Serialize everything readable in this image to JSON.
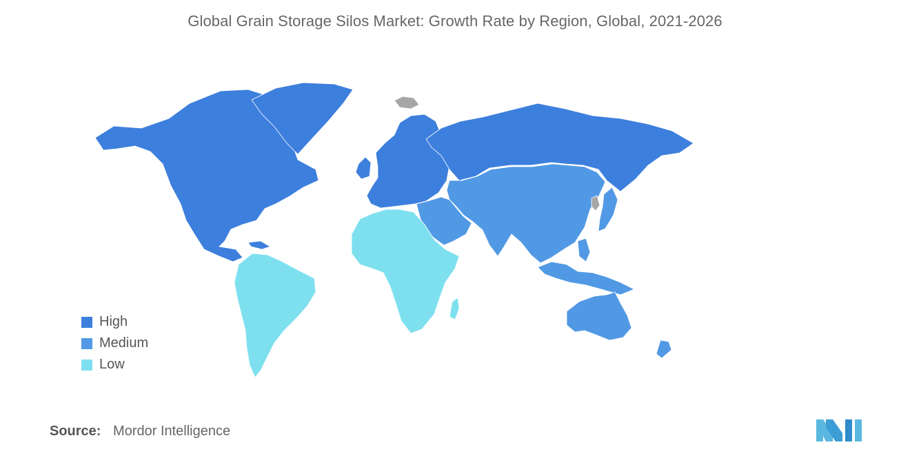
{
  "title": "Global Grain Storage Silos Market: Growth Rate by Region, Global, 2021-2026",
  "legend": {
    "items": [
      {
        "label": "High",
        "color": "#3d7fdd"
      },
      {
        "label": "Medium",
        "color": "#5199e4"
      },
      {
        "label": "Low",
        "color": "#7ee0ef"
      }
    ]
  },
  "no_data_color": "#a6a6a6",
  "regions": [
    {
      "region": "North America",
      "growth": "High"
    },
    {
      "region": "Europe",
      "growth": "High"
    },
    {
      "region": "Russia",
      "growth": "High"
    },
    {
      "region": "Greenland",
      "growth": "High"
    },
    {
      "region": "Asia-Pacific",
      "growth": "Medium"
    },
    {
      "region": "Middle East",
      "growth": "Medium"
    },
    {
      "region": "Australia and New Zealand",
      "growth": "Medium"
    },
    {
      "region": "South America",
      "growth": "Low"
    },
    {
      "region": "Africa",
      "growth": "Low"
    }
  ],
  "source": {
    "key": "Source:",
    "value": "Mordor Intelligence"
  },
  "logo": {
    "icon": "mordor-intelligence-logo"
  }
}
